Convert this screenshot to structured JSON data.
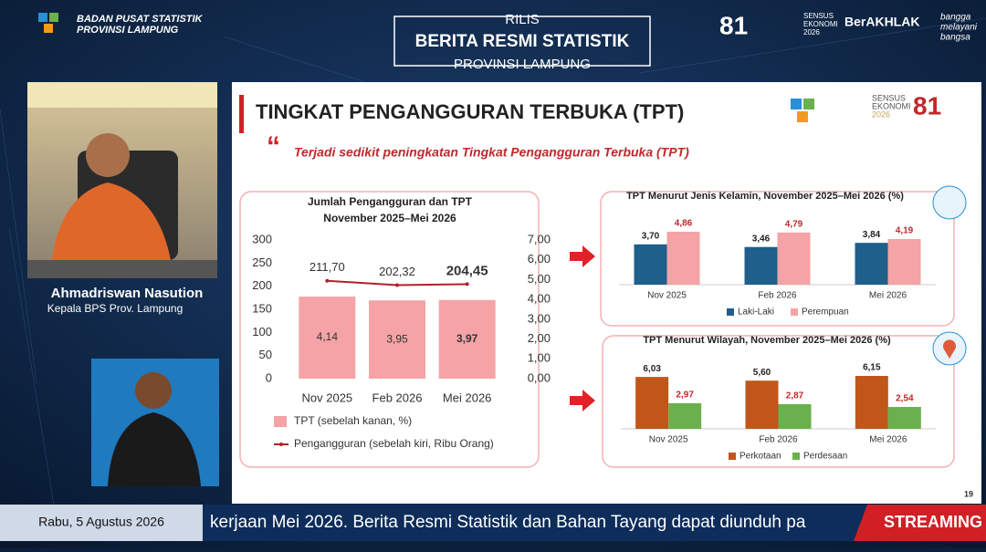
{
  "header": {
    "org": [
      "BADAN PUSAT STATISTIK",
      "PROVINSI LAMPUNG"
    ],
    "rilis": "RILIS",
    "title": "BERITA RESMI STATISTIK",
    "subtitle": "PROVINSI LAMPUNG",
    "logo_81": "81",
    "sensus": [
      "SENSUS",
      "EKONOMI",
      "2026"
    ],
    "berakhlak": "BerAKHLAK",
    "bangga": [
      "bangga",
      "melayani",
      "bangsa"
    ]
  },
  "presenter": {
    "name": "Ahmadriswan Nasution",
    "role": "Kepala BPS Prov. Lampung"
  },
  "slide": {
    "title": "TINGKAT PENGANGGURAN TERBUKA (TPT)",
    "quote": "Terjadi sedikit peningkatan Tingkat Pengangguran Terbuka (TPT)",
    "page": "19",
    "sensus": [
      "SENSUS",
      "EKONOMI",
      "2026"
    ],
    "logo_81": "81"
  },
  "chart_data": [
    {
      "type": "combo",
      "title": "Jumlah Pengangguran dan TPT",
      "subtitle": "November 2025–Mei 2026",
      "categories": [
        "Nov 2025",
        "Feb 2026",
        "Mei 2026"
      ],
      "series": [
        {
          "name": "TPT (sebelah kanan, %)",
          "type": "bar",
          "axis": "y2",
          "color": "#f4a3a6",
          "values": [
            4.14,
            3.95,
            3.97
          ],
          "value_labels": [
            "4,14",
            "3,95",
            "3,97"
          ]
        },
        {
          "name": "Pengangguran (sebelah kiri, Ribu Orang)",
          "type": "line",
          "color": "#b3202a",
          "values": [
            211.7,
            202.32,
            204.45
          ],
          "value_labels": [
            "211,70",
            "202,32",
            "204,45"
          ]
        }
      ],
      "ylim": [
        0,
        300
      ],
      "yticks": [
        0,
        50,
        100,
        150,
        200,
        250,
        300
      ],
      "y2lim": [
        0,
        7
      ],
      "y2ticks": [
        {
          "value": 0,
          "label": "0,00"
        },
        {
          "value": 1,
          "label": "1,00"
        },
        {
          "value": 2,
          "label": "2,00"
        },
        {
          "value": 3,
          "label": "3,00"
        },
        {
          "value": 4,
          "label": "4,00"
        },
        {
          "value": 5,
          "label": "5,00"
        },
        {
          "value": 6,
          "label": "6,00"
        },
        {
          "value": 7,
          "label": "7,00"
        }
      ]
    },
    {
      "type": "bar",
      "title": "TPT Menurut Jenis Kelamin, November 2025–Mei 2026 (%)",
      "categories": [
        "Nov 2025",
        "Feb 2026",
        "Mei 2026"
      ],
      "series": [
        {
          "name": "Laki-Laki",
          "color": "#1f5f8b",
          "values": [
            3.7,
            3.46,
            3.84
          ],
          "value_labels": [
            "3,70",
            "3,46",
            "3,84"
          ]
        },
        {
          "name": "Perempuan",
          "color": "#f4a3a6",
          "values": [
            4.86,
            4.79,
            4.19
          ],
          "value_labels": [
            "4,86",
            "4,79",
            "4,19"
          ]
        }
      ]
    },
    {
      "type": "bar",
      "title": "TPT Menurut Wilayah, November 2025–Mei 2026 (%)",
      "categories": [
        "Nov 2025",
        "Feb 2026",
        "Mei 2026"
      ],
      "series": [
        {
          "name": "Perkotaan",
          "color": "#c0561a",
          "values": [
            6.03,
            5.6,
            6.15
          ],
          "value_labels": [
            "6,03",
            "5,60",
            "6,15"
          ]
        },
        {
          "name": "Perdesaan",
          "color": "#6ab04c",
          "values": [
            2.97,
            2.87,
            2.54
          ],
          "value_labels": [
            "2,97",
            "2,87",
            "2,54"
          ]
        }
      ]
    }
  ],
  "ticker": {
    "date": "Rabu, 5 Agustus 2026",
    "text": "kerjaan Mei 2026. Berita Resmi Statistik dan Bahan Tayang dapat diunduh pa",
    "live": "STREAMING"
  }
}
